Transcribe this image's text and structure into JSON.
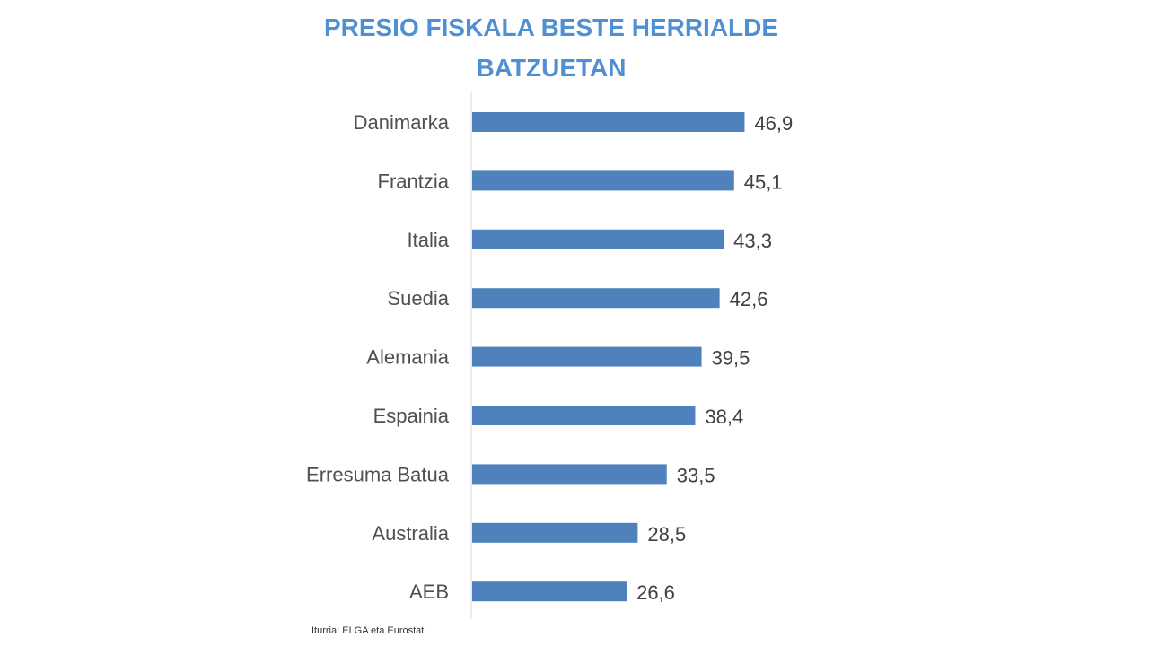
{
  "chart_data": {
    "type": "bar",
    "orientation": "horizontal",
    "title_lines": [
      "PRESIO FISKALA BESTE HERRIALDE",
      "BATZUETAN"
    ],
    "categories": [
      "Danimarka",
      "Frantzia",
      "Italia",
      "Suedia",
      "Alemania",
      "Espainia",
      "Erresuma Batua",
      "Australia",
      "AEB"
    ],
    "values": [
      46.9,
      45.1,
      43.3,
      42.6,
      39.5,
      38.4,
      33.5,
      28.5,
      26.6
    ],
    "value_labels": [
      "46,9",
      "45,1",
      "43,3",
      "42,6",
      "39,5",
      "38,4",
      "33,5",
      "28,5",
      "26,6"
    ],
    "xlim": [
      0,
      50
    ],
    "grid": false,
    "bar_color": "#4f81bd",
    "title_color": "#4f8fd3",
    "source": "Iturria: ELGA eta Eurostat"
  }
}
